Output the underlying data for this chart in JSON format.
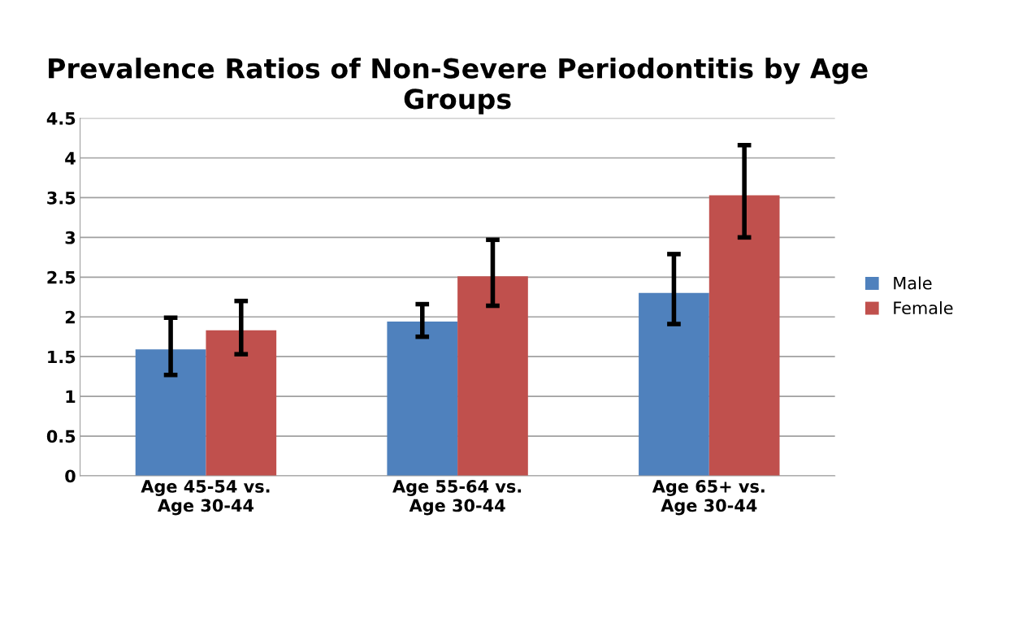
{
  "chart_data": {
    "type": "bar",
    "title": "Prevalence Ratios of Non-Severe Periodontitis by Age Groups",
    "categories": [
      "Age 45-54 vs. Age 30-44",
      "Age 55-64 vs. Age 30-44",
      "Age 65+ vs. Age 30-44"
    ],
    "series": [
      {
        "name": "Male",
        "color": "#4f81bd",
        "values": [
          1.59,
          1.94,
          2.3
        ],
        "errors": [
          [
            1.27,
            1.99
          ],
          [
            1.75,
            2.16
          ],
          [
            1.91,
            2.79
          ]
        ]
      },
      {
        "name": "Female",
        "color": "#c0504d",
        "values": [
          1.83,
          2.51,
          3.53
        ],
        "errors": [
          [
            1.53,
            2.2
          ],
          [
            2.14,
            2.97
          ],
          [
            3.0,
            4.16
          ]
        ]
      }
    ],
    "ylim": [
      0,
      4.5
    ],
    "yticks": [
      0,
      0.5,
      1,
      1.5,
      2,
      2.5,
      3,
      3.5,
      4,
      4.5
    ],
    "grid": "y",
    "legend": "right"
  }
}
